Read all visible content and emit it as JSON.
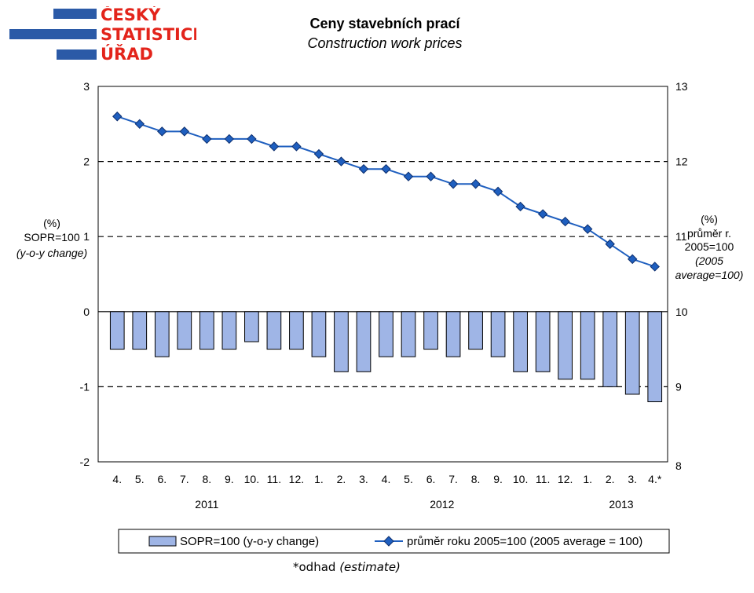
{
  "logo": {
    "lines": [
      "ČESKÝ",
      "STATISTICKÝ",
      "ÚŘAD"
    ],
    "color": "#e3241b",
    "bars_color": "#2b5aa7"
  },
  "header": {
    "title": "Ceny stavebních prací",
    "subtitle": "Construction work prices"
  },
  "chart_data": {
    "type": "bar+line",
    "categories": [
      "4.",
      "5.",
      "6.",
      "7.",
      "8.",
      "9.",
      "10.",
      "11.",
      "12.",
      "1.",
      "2.",
      "3.",
      "4.",
      "5.",
      "6.",
      "7.",
      "8.",
      "9.",
      "10.",
      "11.",
      "12.",
      "1.",
      "2.",
      "3.",
      "4.*"
    ],
    "year_labels": [
      {
        "label": "2011",
        "start": 0,
        "end": 8
      },
      {
        "label": "2012",
        "start": 9,
        "end": 20
      },
      {
        "label": "2013",
        "start": 21,
        "end": 24
      }
    ],
    "series": [
      {
        "name": "SOPR=100 (y-o-y change)",
        "kind": "bar",
        "axis": "left",
        "color": "#9fb5e6",
        "values": [
          -0.5,
          -0.5,
          -0.6,
          -0.5,
          -0.5,
          -0.5,
          -0.4,
          -0.5,
          -0.5,
          -0.6,
          -0.8,
          -0.8,
          -0.6,
          -0.6,
          -0.5,
          -0.6,
          -0.5,
          -0.6,
          -0.8,
          -0.8,
          -0.9,
          -0.9,
          -1.0,
          -1.1,
          -1.2
        ]
      },
      {
        "name": "průměr roku 2005=100 (2005 average = 100)",
        "kind": "line",
        "axis": "right",
        "color": "#1f5fbf",
        "values": [
          12.6,
          12.5,
          12.4,
          12.4,
          12.3,
          12.3,
          12.3,
          12.2,
          12.2,
          12.1,
          12.0,
          11.9,
          11.9,
          11.8,
          11.8,
          11.7,
          11.7,
          11.6,
          11.4,
          11.3,
          11.2,
          11.1,
          10.9,
          10.7,
          10.6
        ]
      }
    ],
    "left_axis": {
      "ticks": [
        "3",
        "2",
        "1",
        "0",
        "-1",
        "-2"
      ],
      "ylim": [
        -2,
        3
      ],
      "label_line1": "(%)",
      "label_line2": "SOPR=100",
      "label_line3": "(y-o-y change)"
    },
    "right_axis": {
      "ticks": [
        "13",
        "12",
        "11",
        "10",
        "9",
        "8"
      ],
      "ylim": [
        8,
        13
      ],
      "label_line1": "(%)",
      "label_line2": "průměr r.",
      "label_line3": "2005=100",
      "label_line4": "(2005",
      "label_line5": "average=100)"
    },
    "grid": "dashed",
    "legend_position": "bottom"
  },
  "footnote": {
    "prefix": "*odhad ",
    "italic": "(estimate)"
  }
}
